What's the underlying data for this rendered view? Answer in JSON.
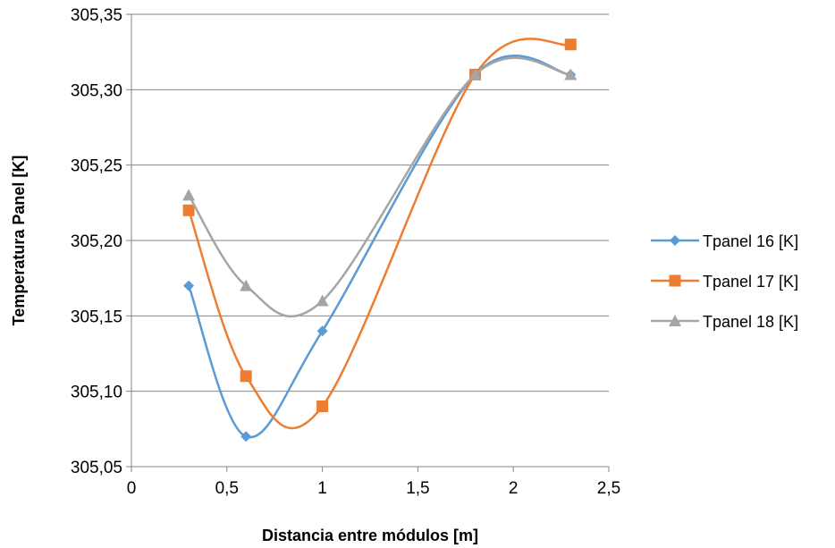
{
  "chart_data": {
    "type": "scatter",
    "xlabel": "Distancia entre módulos [m]",
    "ylabel": "Temperatura Panel [K]",
    "xlim": [
      0,
      2.5
    ],
    "ylim": [
      305.05,
      305.35
    ],
    "x_ticks": [
      "0",
      "0,5",
      "1",
      "1,5",
      "2",
      "2,5"
    ],
    "y_ticks": [
      "305,05",
      "305,10",
      "305,15",
      "305,20",
      "305,25",
      "305,30",
      "305,35"
    ],
    "grid": "horizontal",
    "legend_position": "right",
    "smooth_lines": true,
    "series": [
      {
        "name": "Tpanel 16 [K]",
        "color": "#5B9BD5",
        "marker": "diamond",
        "x": [
          0.3,
          0.6,
          1.0,
          1.8,
          2.3
        ],
        "values": [
          305.17,
          305.07,
          305.14,
          305.31,
          305.31
        ]
      },
      {
        "name": "Tpanel 17 [K]",
        "color": "#ED7D31",
        "marker": "square",
        "x": [
          0.3,
          0.6,
          1.0,
          1.8,
          2.3
        ],
        "values": [
          305.22,
          305.11,
          305.09,
          305.31,
          305.33
        ]
      },
      {
        "name": "Tpanel 18 [K]",
        "color": "#A5A5A5",
        "marker": "triangle",
        "x": [
          0.3,
          0.6,
          1.0,
          1.8,
          2.3
        ],
        "values": [
          305.23,
          305.17,
          305.16,
          305.31,
          305.31
        ]
      }
    ]
  }
}
